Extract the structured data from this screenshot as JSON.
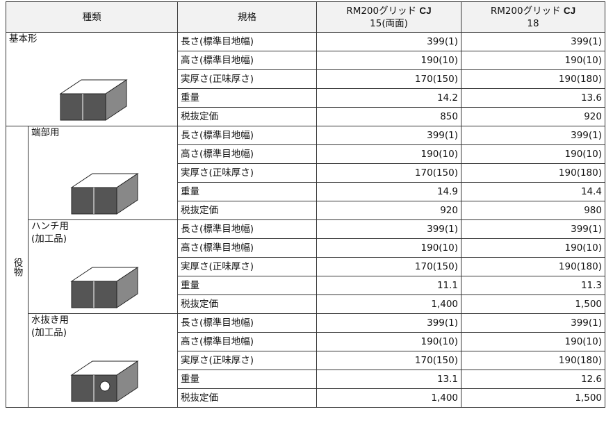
{
  "header": {
    "type": "種類",
    "spec": "規格",
    "products": [
      {
        "name": "RM200グリッド",
        "mark": "CJ",
        "variant": "15(両面)"
      },
      {
        "name": "RM200グリッド",
        "mark": "CJ",
        "variant": "18"
      }
    ]
  },
  "basic": {
    "name": [
      "基本形"
    ],
    "rows": [
      [
        "長さ(標準目地幅)",
        "399(1)",
        "399(1)"
      ],
      [
        "高さ(標準目地幅)",
        "190(10)",
        "190(10)"
      ],
      [
        "実厚さ(正味厚さ)",
        "170(150)",
        "190(180)"
      ],
      [
        "重量",
        "14.2",
        "13.6"
      ],
      [
        "税抜定価",
        "850",
        "920"
      ]
    ]
  },
  "yakumono": {
    "label": "役物",
    "items": [
      {
        "name": [
          "端部用"
        ],
        "rows": [
          [
            "長さ(標準目地幅)",
            "399(1)",
            "399(1)"
          ],
          [
            "高さ(標準目地幅)",
            "190(10)",
            "190(10)"
          ],
          [
            "実厚さ(正味厚さ)",
            "170(150)",
            "190(180)"
          ],
          [
            "重量",
            "14.9",
            "14.4"
          ],
          [
            "税抜定価",
            "920",
            "980"
          ]
        ]
      },
      {
        "name": [
          "ハンチ用",
          "(加工品)"
        ],
        "rows": [
          [
            "長さ(標準目地幅)",
            "399(1)",
            "399(1)"
          ],
          [
            "高さ(標準目地幅)",
            "190(10)",
            "190(10)"
          ],
          [
            "実厚さ(正味厚さ)",
            "170(150)",
            "190(180)"
          ],
          [
            "重量",
            "11.1",
            "11.3"
          ],
          [
            "税抜定価",
            "1,400",
            "1,500"
          ]
        ]
      },
      {
        "name": [
          "水抜き用",
          "(加工品)"
        ],
        "rows": [
          [
            "長さ(標準目地幅)",
            "399(1)",
            "399(1)"
          ],
          [
            "高さ(標準目地幅)",
            "190(10)",
            "190(10)"
          ],
          [
            "実厚さ(正味厚さ)",
            "170(150)",
            "190(180)"
          ],
          [
            "重量",
            "13.1",
            "12.6"
          ],
          [
            "税抜定価",
            "1,400",
            "1,500"
          ]
        ]
      }
    ]
  }
}
